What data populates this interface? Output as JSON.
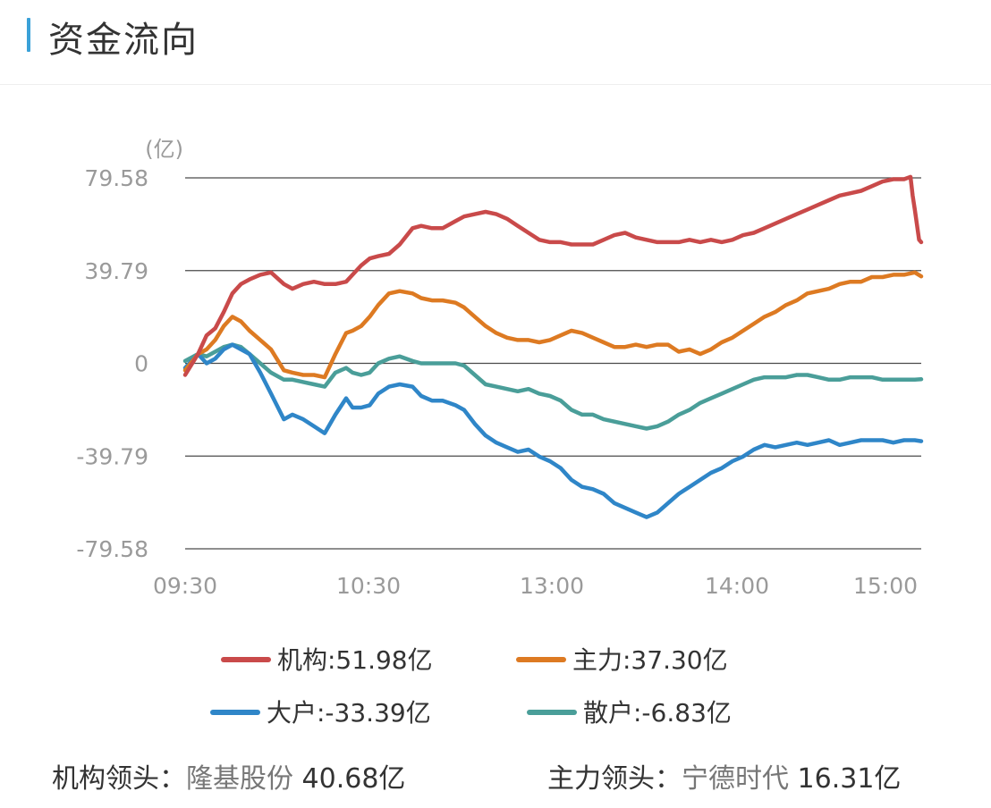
{
  "header": {
    "title": "资金流向"
  },
  "chart_data": {
    "type": "line",
    "unit_label": "(亿)",
    "y_ticks": [
      "79.58",
      "39.79",
      "0",
      "-39.79",
      "-79.58"
    ],
    "ylim": [
      -79.58,
      79.58
    ],
    "x_ticks": [
      "09:30",
      "10:30",
      "13:00",
      "14:00",
      "15:00"
    ],
    "grid": true,
    "legend_position": "bottom",
    "series": [
      {
        "name": "机构",
        "legend_label": "机构:51.98亿",
        "color": "#c94a4a",
        "points": [
          [
            0,
            -5
          ],
          [
            6,
            4
          ],
          [
            10,
            12
          ],
          [
            14,
            15
          ],
          [
            18,
            22
          ],
          [
            22,
            30
          ],
          [
            26,
            34
          ],
          [
            30,
            36
          ],
          [
            35,
            38
          ],
          [
            40,
            39
          ],
          [
            46,
            34
          ],
          [
            50,
            32
          ],
          [
            55,
            34
          ],
          [
            60,
            35
          ],
          [
            65,
            34
          ],
          [
            70,
            34
          ],
          [
            75,
            35
          ],
          [
            78,
            38
          ],
          [
            82,
            42
          ],
          [
            86,
            45
          ],
          [
            90,
            46
          ],
          [
            95,
            47
          ],
          [
            100,
            51
          ],
          [
            106,
            58
          ],
          [
            110,
            59
          ],
          [
            115,
            58
          ],
          [
            120,
            58
          ],
          [
            126,
            61
          ],
          [
            130,
            63
          ],
          [
            135,
            64
          ],
          [
            140,
            65
          ],
          [
            145,
            64
          ],
          [
            150,
            62
          ],
          [
            155,
            59
          ],
          [
            160,
            56
          ],
          [
            165,
            53
          ],
          [
            170,
            52
          ],
          [
            175,
            52
          ],
          [
            180,
            51
          ],
          [
            185,
            51
          ],
          [
            190,
            51
          ],
          [
            195,
            53
          ],
          [
            200,
            55
          ],
          [
            205,
            56
          ],
          [
            210,
            54
          ],
          [
            215,
            53
          ],
          [
            220,
            52
          ],
          [
            225,
            52
          ],
          [
            230,
            52
          ],
          [
            235,
            53
          ],
          [
            240,
            52
          ],
          [
            245,
            53
          ],
          [
            250,
            52
          ],
          [
            255,
            53
          ],
          [
            260,
            55
          ],
          [
            265,
            56
          ],
          [
            270,
            58
          ],
          [
            275,
            60
          ],
          [
            280,
            62
          ],
          [
            285,
            64
          ],
          [
            290,
            66
          ],
          [
            295,
            68
          ],
          [
            300,
            70
          ],
          [
            305,
            72
          ],
          [
            310,
            73
          ],
          [
            315,
            74
          ],
          [
            320,
            76
          ],
          [
            325,
            78
          ],
          [
            330,
            79
          ],
          [
            335,
            79
          ],
          [
            338,
            80
          ],
          [
            339,
            72
          ],
          [
            340,
            66
          ],
          [
            342,
            53
          ],
          [
            343,
            51.98
          ]
        ]
      },
      {
        "name": "主力",
        "legend_label": "主力:37.30亿",
        "color": "#dd7a22",
        "points": [
          [
            0,
            -3
          ],
          [
            6,
            4
          ],
          [
            10,
            6
          ],
          [
            14,
            10
          ],
          [
            18,
            16
          ],
          [
            22,
            20
          ],
          [
            26,
            18
          ],
          [
            30,
            14
          ],
          [
            35,
            10
          ],
          [
            40,
            6
          ],
          [
            46,
            -3
          ],
          [
            50,
            -4
          ],
          [
            55,
            -5
          ],
          [
            60,
            -5
          ],
          [
            65,
            -6
          ],
          [
            70,
            4
          ],
          [
            75,
            13
          ],
          [
            78,
            14
          ],
          [
            82,
            16
          ],
          [
            86,
            20
          ],
          [
            90,
            25
          ],
          [
            95,
            30
          ],
          [
            100,
            31
          ],
          [
            106,
            30
          ],
          [
            110,
            28
          ],
          [
            115,
            27
          ],
          [
            120,
            27
          ],
          [
            126,
            26
          ],
          [
            130,
            24
          ],
          [
            135,
            20
          ],
          [
            140,
            16
          ],
          [
            145,
            13
          ],
          [
            150,
            11
          ],
          [
            155,
            10
          ],
          [
            160,
            10
          ],
          [
            165,
            9
          ],
          [
            170,
            10
          ],
          [
            175,
            12
          ],
          [
            180,
            14
          ],
          [
            185,
            13
          ],
          [
            190,
            11
          ],
          [
            195,
            9
          ],
          [
            200,
            7
          ],
          [
            205,
            7
          ],
          [
            210,
            8
          ],
          [
            215,
            7
          ],
          [
            220,
            8
          ],
          [
            225,
            8
          ],
          [
            230,
            5
          ],
          [
            235,
            6
          ],
          [
            240,
            4
          ],
          [
            245,
            6
          ],
          [
            250,
            9
          ],
          [
            255,
            11
          ],
          [
            260,
            14
          ],
          [
            265,
            17
          ],
          [
            270,
            20
          ],
          [
            275,
            22
          ],
          [
            280,
            25
          ],
          [
            285,
            27
          ],
          [
            290,
            30
          ],
          [
            295,
            31
          ],
          [
            300,
            32
          ],
          [
            305,
            34
          ],
          [
            310,
            35
          ],
          [
            315,
            35
          ],
          [
            320,
            37
          ],
          [
            325,
            37
          ],
          [
            330,
            38
          ],
          [
            335,
            38
          ],
          [
            340,
            39
          ],
          [
            343,
            37.3
          ]
        ]
      },
      {
        "name": "大户",
        "legend_label": "大户:-33.39亿",
        "color": "#2f86c8",
        "points": [
          [
            0,
            -2
          ],
          [
            6,
            4
          ],
          [
            10,
            0
          ],
          [
            14,
            2
          ],
          [
            18,
            6
          ],
          [
            22,
            8
          ],
          [
            26,
            6
          ],
          [
            30,
            4
          ],
          [
            35,
            -4
          ],
          [
            40,
            -13
          ],
          [
            46,
            -24
          ],
          [
            50,
            -22
          ],
          [
            55,
            -24
          ],
          [
            60,
            -27
          ],
          [
            65,
            -30
          ],
          [
            70,
            -22
          ],
          [
            75,
            -15
          ],
          [
            78,
            -19
          ],
          [
            82,
            -19
          ],
          [
            86,
            -18
          ],
          [
            90,
            -13
          ],
          [
            95,
            -10
          ],
          [
            100,
            -9
          ],
          [
            106,
            -10
          ],
          [
            110,
            -14
          ],
          [
            115,
            -16
          ],
          [
            120,
            -16
          ],
          [
            126,
            -18
          ],
          [
            130,
            -20
          ],
          [
            135,
            -26
          ],
          [
            140,
            -31
          ],
          [
            145,
            -34
          ],
          [
            150,
            -36
          ],
          [
            155,
            -38
          ],
          [
            160,
            -37
          ],
          [
            165,
            -40
          ],
          [
            170,
            -42
          ],
          [
            175,
            -45
          ],
          [
            180,
            -50
          ],
          [
            185,
            -53
          ],
          [
            190,
            -54
          ],
          [
            195,
            -56
          ],
          [
            200,
            -60
          ],
          [
            205,
            -62
          ],
          [
            210,
            -64
          ],
          [
            215,
            -66
          ],
          [
            220,
            -64
          ],
          [
            225,
            -60
          ],
          [
            230,
            -56
          ],
          [
            235,
            -53
          ],
          [
            240,
            -50
          ],
          [
            245,
            -47
          ],
          [
            250,
            -45
          ],
          [
            255,
            -42
          ],
          [
            260,
            -40
          ],
          [
            265,
            -37
          ],
          [
            270,
            -35
          ],
          [
            275,
            -36
          ],
          [
            280,
            -35
          ],
          [
            285,
            -34
          ],
          [
            290,
            -35
          ],
          [
            295,
            -34
          ],
          [
            300,
            -33
          ],
          [
            305,
            -35
          ],
          [
            310,
            -34
          ],
          [
            315,
            -33
          ],
          [
            320,
            -33
          ],
          [
            325,
            -33
          ],
          [
            330,
            -34
          ],
          [
            335,
            -33
          ],
          [
            340,
            -33
          ],
          [
            343,
            -33.39
          ]
        ]
      },
      {
        "name": "散户",
        "legend_label": "散户:-6.83亿",
        "color": "#4a9e99",
        "points": [
          [
            0,
            1
          ],
          [
            6,
            4
          ],
          [
            10,
            3
          ],
          [
            14,
            5
          ],
          [
            18,
            7
          ],
          [
            22,
            8
          ],
          [
            26,
            7
          ],
          [
            30,
            4
          ],
          [
            35,
            0
          ],
          [
            40,
            -4
          ],
          [
            46,
            -7
          ],
          [
            50,
            -7
          ],
          [
            55,
            -8
          ],
          [
            60,
            -9
          ],
          [
            65,
            -10
          ],
          [
            70,
            -4
          ],
          [
            75,
            -2
          ],
          [
            78,
            -4
          ],
          [
            82,
            -5
          ],
          [
            86,
            -4
          ],
          [
            90,
            0
          ],
          [
            95,
            2
          ],
          [
            100,
            3
          ],
          [
            106,
            1
          ],
          [
            110,
            0
          ],
          [
            115,
            0
          ],
          [
            120,
            0
          ],
          [
            126,
            0
          ],
          [
            130,
            -1
          ],
          [
            135,
            -5
          ],
          [
            140,
            -9
          ],
          [
            145,
            -10
          ],
          [
            150,
            -11
          ],
          [
            155,
            -12
          ],
          [
            160,
            -11
          ],
          [
            165,
            -13
          ],
          [
            170,
            -14
          ],
          [
            175,
            -16
          ],
          [
            180,
            -20
          ],
          [
            185,
            -22
          ],
          [
            190,
            -22
          ],
          [
            195,
            -24
          ],
          [
            200,
            -25
          ],
          [
            205,
            -26
          ],
          [
            210,
            -27
          ],
          [
            215,
            -28
          ],
          [
            220,
            -27
          ],
          [
            225,
            -25
          ],
          [
            230,
            -22
          ],
          [
            235,
            -20
          ],
          [
            240,
            -17
          ],
          [
            245,
            -15
          ],
          [
            250,
            -13
          ],
          [
            255,
            -11
          ],
          [
            260,
            -9
          ],
          [
            265,
            -7
          ],
          [
            270,
            -6
          ],
          [
            275,
            -6
          ],
          [
            280,
            -6
          ],
          [
            285,
            -5
          ],
          [
            290,
            -5
          ],
          [
            295,
            -6
          ],
          [
            300,
            -7
          ],
          [
            305,
            -7
          ],
          [
            310,
            -6
          ],
          [
            315,
            -6
          ],
          [
            320,
            -6
          ],
          [
            325,
            -7
          ],
          [
            330,
            -7
          ],
          [
            335,
            -7
          ],
          [
            340,
            -7
          ],
          [
            343,
            -6.83
          ]
        ]
      }
    ]
  },
  "leaders": [
    {
      "label": "机构领头：",
      "name": "隆基股份",
      "value": "40.68亿"
    },
    {
      "label": "主力领头：",
      "name": "宁德时代",
      "value": "16.31亿"
    }
  ]
}
